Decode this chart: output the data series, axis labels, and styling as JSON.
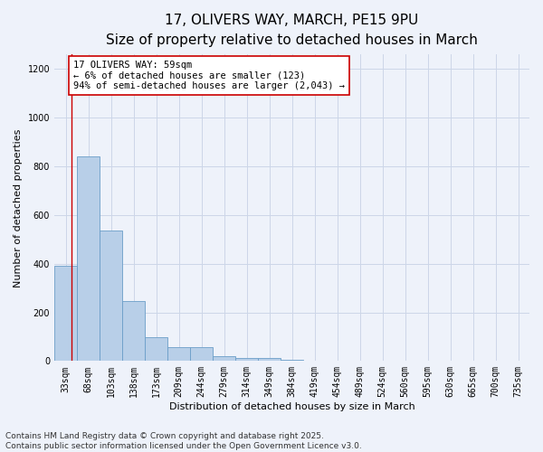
{
  "title_line1": "17, OLIVERS WAY, MARCH, PE15 9PU",
  "title_line2": "Size of property relative to detached houses in March",
  "xlabel": "Distribution of detached houses by size in March",
  "ylabel": "Number of detached properties",
  "categories": [
    "33sqm",
    "68sqm",
    "103sqm",
    "138sqm",
    "173sqm",
    "209sqm",
    "244sqm",
    "279sqm",
    "314sqm",
    "349sqm",
    "384sqm",
    "419sqm",
    "454sqm",
    "489sqm",
    "524sqm",
    "560sqm",
    "595sqm",
    "630sqm",
    "665sqm",
    "700sqm",
    "735sqm"
  ],
  "values": [
    390,
    840,
    535,
    248,
    98,
    57,
    57,
    18,
    13,
    13,
    5,
    0,
    0,
    0,
    0,
    0,
    0,
    0,
    0,
    0,
    0
  ],
  "bar_color": "#b8cfe8",
  "bar_edge_color": "#6b9ec8",
  "vline_color": "#cc0000",
  "ylim": [
    0,
    1260
  ],
  "yticks": [
    0,
    200,
    400,
    600,
    800,
    1000,
    1200
  ],
  "grid_color": "#ccd6e8",
  "bg_color": "#eef2fa",
  "annotation_text_line1": "17 OLIVERS WAY: 59sqm",
  "annotation_text_line2": "← 6% of detached houses are smaller (123)",
  "annotation_text_line3": "94% of semi-detached houses are larger (2,043) →",
  "footer_line1": "Contains HM Land Registry data © Crown copyright and database right 2025.",
  "footer_line2": "Contains public sector information licensed under the Open Government Licence v3.0.",
  "title_fontsize": 11,
  "subtitle_fontsize": 9.5,
  "axis_label_fontsize": 8,
  "tick_fontsize": 7,
  "annotation_fontsize": 7.5,
  "footer_fontsize": 6.5
}
